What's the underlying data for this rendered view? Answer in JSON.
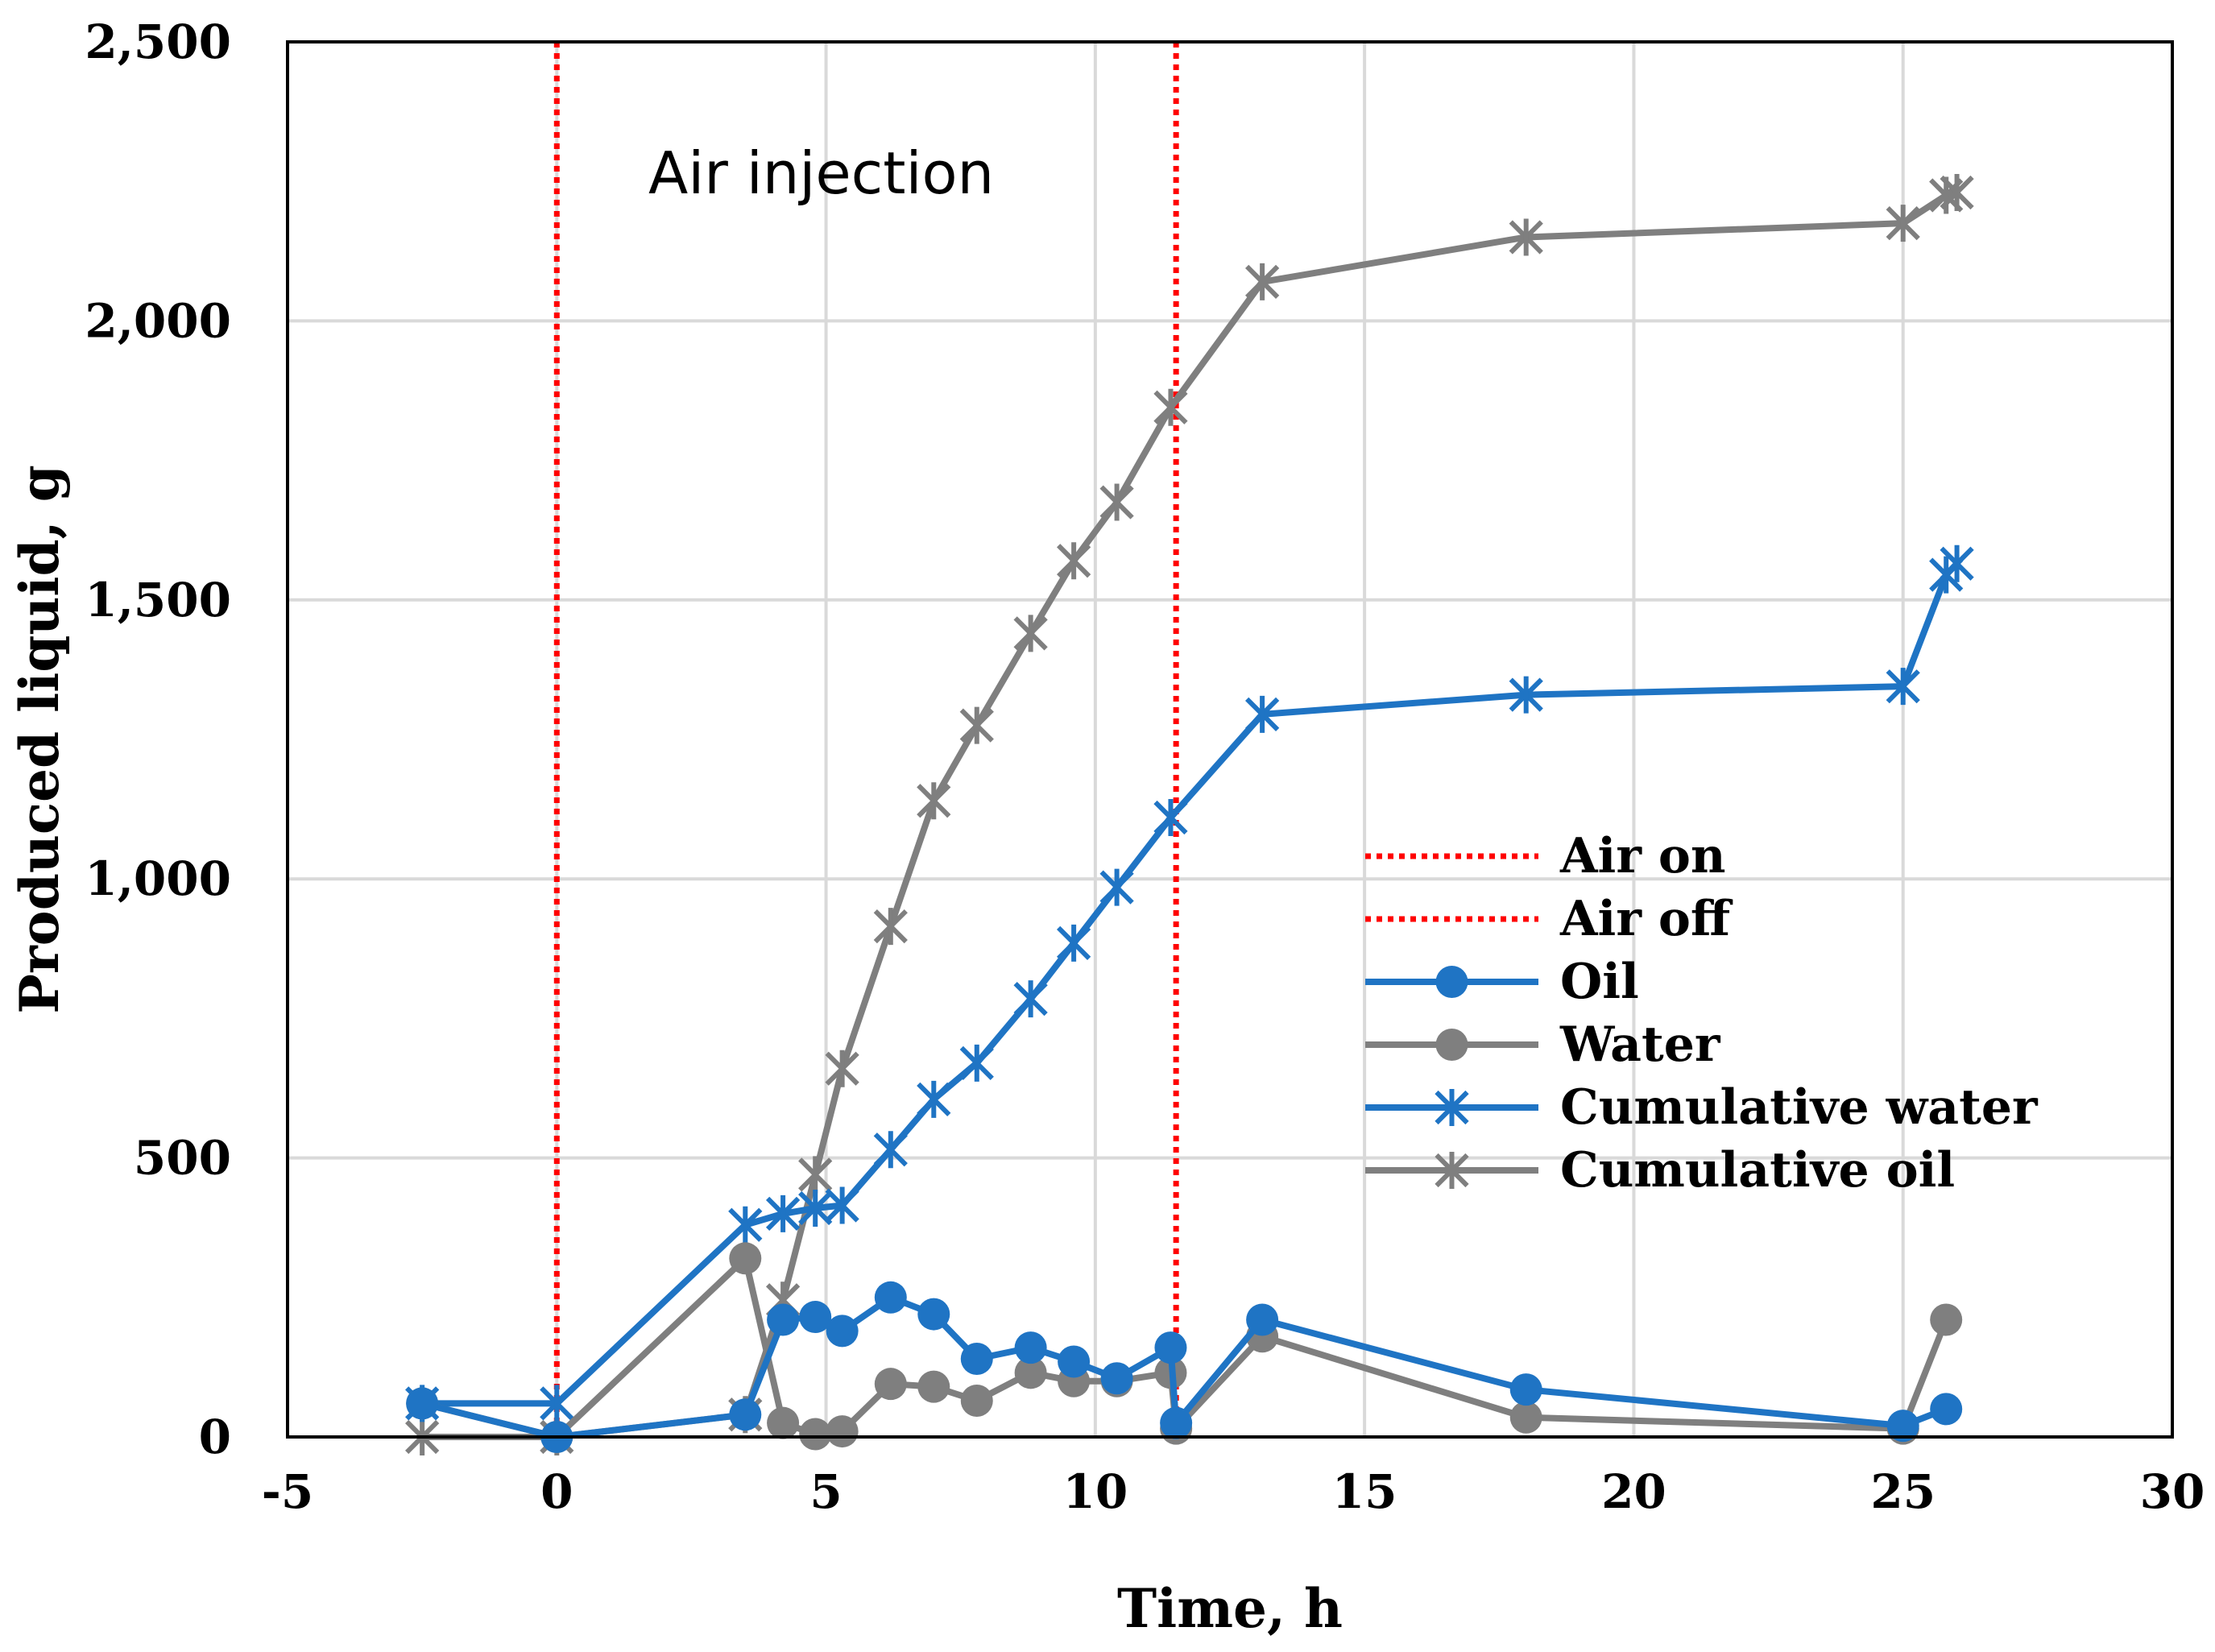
{
  "chart_data": {
    "type": "line",
    "title": "",
    "xlabel": "Time, h",
    "ylabel": "Produced liquid, g",
    "xlim": [
      -5,
      30
    ],
    "ylim": [
      0,
      2500
    ],
    "xticks": [
      -5,
      0,
      5,
      10,
      15,
      20,
      25,
      30
    ],
    "yticks": [
      0,
      500,
      1000,
      1500,
      2000,
      2500
    ],
    "xtick_labels": [
      "-5",
      "0",
      "5",
      "10",
      "15",
      "20",
      "25",
      "30"
    ],
    "ytick_labels": [
      "0",
      "500",
      "1,000",
      "1,500",
      "2,000",
      "2,500"
    ],
    "grid": true,
    "legend_position": "center-right",
    "annotations": [
      {
        "text": "Air injection",
        "x": 0.5,
        "y": 2250
      }
    ],
    "vlines": [
      {
        "name": "Air on",
        "x": 0,
        "color": "#ff0000"
      },
      {
        "name": "Air off",
        "x": 11.5,
        "color": "#ff0000"
      }
    ],
    "series": [
      {
        "name": "Oil",
        "color": "#1f74c4",
        "marker": "circle",
        "x": [
          -2.5,
          0,
          3.5,
          4.2,
          4.8,
          5.3,
          6.2,
          7.0,
          7.8,
          8.8,
          9.6,
          10.4,
          11.4,
          11.5,
          13.1,
          18.0,
          25.0,
          25.8
        ],
        "y": [
          60,
          0,
          40,
          210,
          215,
          190,
          250,
          220,
          140,
          160,
          135,
          105,
          160,
          25,
          210,
          85,
          20,
          50
        ]
      },
      {
        "name": "Water",
        "color": "#7f7f7f",
        "marker": "circle",
        "x": [
          -2.5,
          0,
          3.5,
          4.2,
          4.8,
          5.3,
          6.2,
          7.0,
          7.8,
          8.8,
          9.6,
          10.4,
          11.4,
          11.5,
          13.1,
          18.0,
          25.0,
          25.8
        ],
        "y": [
          60,
          0,
          320,
          25,
          5,
          10,
          95,
          90,
          65,
          115,
          100,
          100,
          115,
          15,
          180,
          35,
          15,
          210
        ]
      },
      {
        "name": "Cumulative water",
        "color": "#1f74c4",
        "marker": "star",
        "x": [
          -2.5,
          0,
          3.5,
          4.2,
          4.8,
          5.3,
          6.2,
          7.0,
          7.8,
          8.8,
          9.6,
          10.4,
          11.4,
          13.1,
          18.0,
          25.0,
          25.8,
          26.0
        ],
        "y": [
          60,
          60,
          380,
          400,
          410,
          415,
          515,
          605,
          670,
          785,
          885,
          985,
          1110,
          1295,
          1330,
          1345,
          1545,
          1565
        ]
      },
      {
        "name": "Cumulative oil",
        "color": "#7f7f7f",
        "marker": "star",
        "x": [
          -2.5,
          0,
          3.5,
          4.2,
          4.8,
          5.3,
          6.2,
          7.0,
          7.8,
          8.8,
          9.6,
          10.4,
          11.4,
          13.1,
          18.0,
          25.0,
          25.8,
          26.0
        ],
        "y": [
          0,
          0,
          40,
          245,
          470,
          660,
          915,
          1140,
          1275,
          1440,
          1570,
          1675,
          1845,
          2070,
          2150,
          2175,
          2225,
          2230
        ]
      }
    ]
  }
}
